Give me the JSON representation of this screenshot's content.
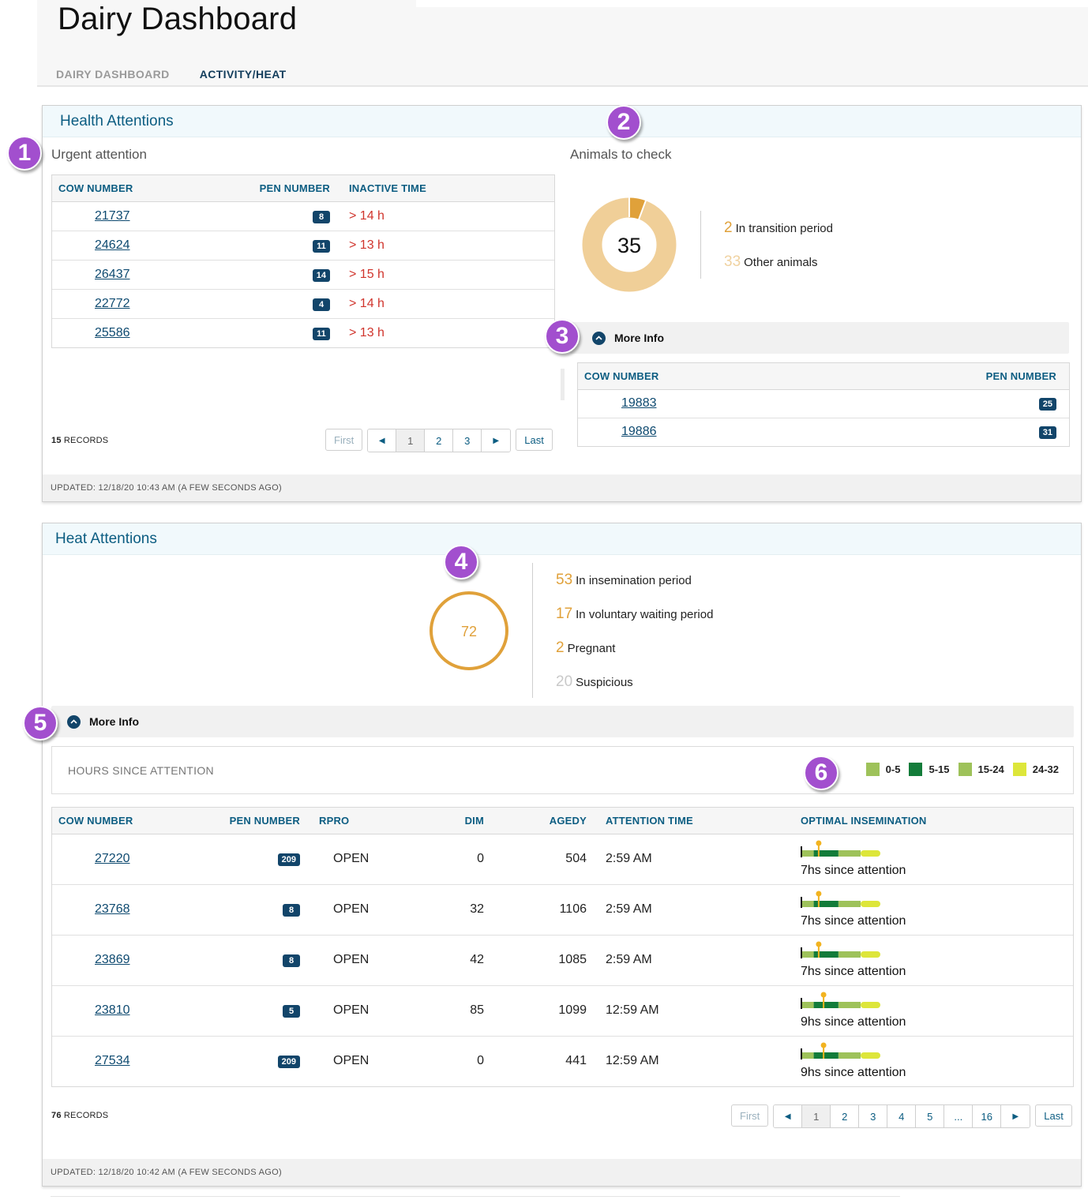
{
  "app": {
    "title": "Dairy Dashboard",
    "tabs": [
      "DAIRY DASHBOARD",
      "ACTIVITY/HEAT"
    ]
  },
  "health": {
    "title": "Health Attentions",
    "urgent": {
      "title": "Urgent attention",
      "columns": [
        "COW NUMBER",
        "PEN NUMBER",
        "INACTIVE TIME"
      ],
      "rows": [
        {
          "cow": "21737",
          "pen": "8",
          "time": "> 14 h"
        },
        {
          "cow": "24624",
          "pen": "11",
          "time": "> 13 h"
        },
        {
          "cow": "26437",
          "pen": "14",
          "time": "> 15 h"
        },
        {
          "cow": "22772",
          "pen": "4",
          "time": "> 14 h"
        },
        {
          "cow": "25586",
          "pen": "11",
          "time": "> 13 h"
        }
      ],
      "records_count": "15",
      "records_label": "RECORDS",
      "pager": {
        "first": "First",
        "pages": [
          "1",
          "2",
          "3"
        ],
        "last": "Last"
      }
    },
    "check": {
      "title": "Animals to check",
      "total": "35",
      "legend": [
        {
          "num": "2",
          "label": "In transition period",
          "color": "#e0a13a"
        },
        {
          "num": "33",
          "label": "Other animals",
          "color": "#f0d2a0"
        }
      ],
      "more_info": "More Info",
      "columns": [
        "COW NUMBER",
        "PEN NUMBER"
      ],
      "rows": [
        {
          "cow": "19883",
          "pen": "25"
        },
        {
          "cow": "19886",
          "pen": "31"
        }
      ]
    },
    "updated": "UPDATED: 12/18/20 10:43 AM (A FEW SECONDS AGO)"
  },
  "heat": {
    "title": "Heat Attentions",
    "total": "72",
    "legend": [
      {
        "num": "53",
        "label": "In insemination period",
        "color": "#e0a13a"
      },
      {
        "num": "17",
        "label": "In voluntary waiting period",
        "color": "#e0a13a"
      },
      {
        "num": "2",
        "label": "Pregnant",
        "color": "#e0a13a"
      },
      {
        "num": "20",
        "label": "Suspicious",
        "color": "#c9c9c9"
      }
    ],
    "more_info": "More Info",
    "hours_label": "HOURS SINCE ATTENTION",
    "hours_legend": [
      {
        "label": "0-5",
        "color": "#9ec25a"
      },
      {
        "label": "5-15",
        "color": "#137c3a"
      },
      {
        "label": "15-24",
        "color": "#9ec25a"
      },
      {
        "label": "24-32",
        "color": "#dde63a"
      }
    ],
    "columns": [
      "COW NUMBER",
      "PEN NUMBER",
      "RPRO",
      "DIM",
      "AGEDY",
      "ATTENTION TIME",
      "OPTIMAL INSEMINATION"
    ],
    "rows": [
      {
        "cow": "27220",
        "pen": "209",
        "rpro": "OPEN",
        "dim": "0",
        "agedy": "504",
        "time": "2:59 AM",
        "since": "7hs since attention",
        "hours": 7
      },
      {
        "cow": "23768",
        "pen": "8",
        "rpro": "OPEN",
        "dim": "32",
        "agedy": "1106",
        "time": "2:59 AM",
        "since": "7hs since attention",
        "hours": 7
      },
      {
        "cow": "23869",
        "pen": "8",
        "rpro": "OPEN",
        "dim": "42",
        "agedy": "1085",
        "time": "2:59 AM",
        "since": "7hs since attention",
        "hours": 7
      },
      {
        "cow": "23810",
        "pen": "5",
        "rpro": "OPEN",
        "dim": "85",
        "agedy": "1099",
        "time": "12:59 AM",
        "since": "9hs since attention",
        "hours": 9
      },
      {
        "cow": "27534",
        "pen": "209",
        "rpro": "OPEN",
        "dim": "0",
        "agedy": "441",
        "time": "12:59 AM",
        "since": "9hs since attention",
        "hours": 9
      }
    ],
    "records_count": "76",
    "records_label": "RECORDS",
    "pager": {
      "first": "First",
      "pages": [
        "1",
        "2",
        "3",
        "4",
        "5",
        "...",
        "16"
      ],
      "last": "Last"
    },
    "updated": "UPDATED: 12/18/20 10:42 AM (A FEW SECONDS AGO)"
  },
  "markers": [
    "1",
    "2",
    "3",
    "4",
    "5",
    "6"
  ]
}
